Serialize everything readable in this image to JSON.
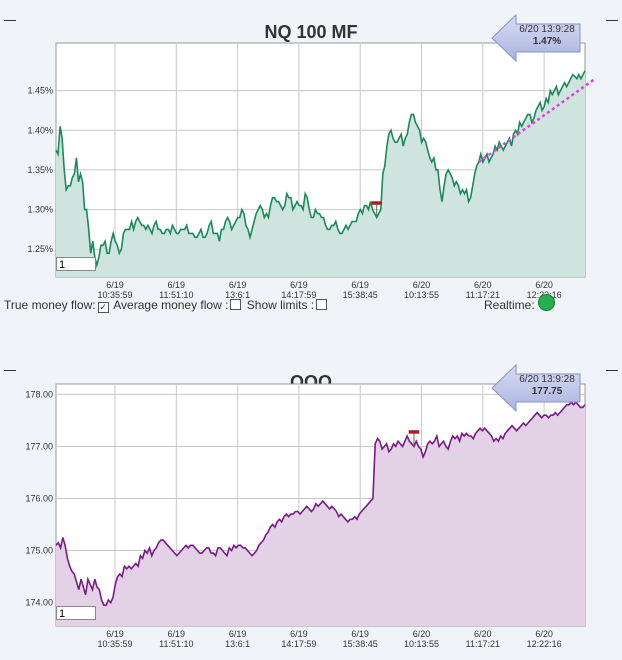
{
  "charts": [
    {
      "title": "NQ 100 MF",
      "callout_time": "6/20 13:9:28",
      "callout_value": "1.47%",
      "input_value": "1",
      "colors": {
        "line": "#1a8a5a",
        "fill": "#cfe4de",
        "trend": "#e040e0"
      }
    },
    {
      "title": "QQQ",
      "callout_time": "6/20 13:9:28",
      "callout_value": "177.75",
      "input_value": "1",
      "colors": {
        "line": "#7a1a8a",
        "fill": "#e3d2e6"
      }
    }
  ],
  "options": {
    "true_money_flow": "True money flow:",
    "average_money_flow": "Average money flow :",
    "show_limits": "Show limits :",
    "realtime": "Realtime:",
    "true_money_flow_checked": true,
    "realtime_color": "#22b14c"
  },
  "chart_data": [
    {
      "type": "area",
      "title": "NQ 100 MF",
      "ylim": [
        1.215,
        1.51
      ],
      "yticks": [
        "1.25%",
        "1.30%",
        "1.35%",
        "1.40%",
        "1.45%"
      ],
      "ytick_values": [
        1.25,
        1.3,
        1.35,
        1.4,
        1.45
      ],
      "xticks": [
        {
          "date": "6/19",
          "time": "10:35:59"
        },
        {
          "date": "6/19",
          "time": "11:51:10"
        },
        {
          "date": "6/19",
          "time": "13:6:1"
        },
        {
          "date": "6/19",
          "time": "14:17:59"
        },
        {
          "date": "6/19",
          "time": "15:38:45"
        },
        {
          "date": "6/20",
          "time": "10:13:55"
        },
        {
          "date": "6/20",
          "time": "11:17:21"
        },
        {
          "date": "6/20",
          "time": "12:22:16"
        }
      ],
      "marker_index": 157,
      "trend_line": {
        "start_index": 207,
        "end_index": 264,
        "start_value": 1.36,
        "end_value": 1.465
      },
      "values": [
        1.375,
        1.37,
        1.405,
        1.39,
        1.35,
        1.325,
        1.33,
        1.33,
        1.34,
        1.345,
        1.365,
        1.335,
        1.345,
        1.335,
        1.3,
        1.3,
        1.275,
        1.245,
        1.26,
        1.24,
        1.23,
        1.24,
        1.255,
        1.255,
        1.26,
        1.245,
        1.245,
        1.26,
        1.27,
        1.26,
        1.255,
        1.245,
        1.25,
        1.27,
        1.275,
        1.275,
        1.275,
        1.285,
        1.275,
        1.285,
        1.29,
        1.285,
        1.28,
        1.28,
        1.275,
        1.28,
        1.275,
        1.27,
        1.28,
        1.285,
        1.275,
        1.275,
        1.27,
        1.27,
        1.275,
        1.275,
        1.27,
        1.28,
        1.275,
        1.27,
        1.27,
        1.275,
        1.275,
        1.275,
        1.28,
        1.27,
        1.27,
        1.27,
        1.265,
        1.265,
        1.27,
        1.275,
        1.265,
        1.265,
        1.27,
        1.28,
        1.285,
        1.27,
        1.27,
        1.27,
        1.26,
        1.275,
        1.275,
        1.285,
        1.29,
        1.285,
        1.275,
        1.28,
        1.285,
        1.29,
        1.29,
        1.3,
        1.295,
        1.28,
        1.275,
        1.265,
        1.275,
        1.285,
        1.295,
        1.3,
        1.305,
        1.3,
        1.29,
        1.295,
        1.29,
        1.305,
        1.315,
        1.315,
        1.31,
        1.31,
        1.305,
        1.3,
        1.305,
        1.32,
        1.315,
        1.315,
        1.3,
        1.305,
        1.31,
        1.305,
        1.305,
        1.3,
        1.32,
        1.315,
        1.3,
        1.29,
        1.29,
        1.3,
        1.295,
        1.295,
        1.29,
        1.29,
        1.28,
        1.275,
        1.275,
        1.28,
        1.28,
        1.285,
        1.275,
        1.27,
        1.27,
        1.275,
        1.28,
        1.275,
        1.28,
        1.285,
        1.285,
        1.285,
        1.295,
        1.3,
        1.295,
        1.305,
        1.305,
        1.3,
        1.31,
        1.3,
        1.295,
        1.29,
        1.295,
        1.3,
        1.345,
        1.355,
        1.38,
        1.395,
        1.4,
        1.39,
        1.385,
        1.385,
        1.39,
        1.395,
        1.38,
        1.39,
        1.395,
        1.41,
        1.42,
        1.42,
        1.41,
        1.405,
        1.4,
        1.385,
        1.39,
        1.385,
        1.375,
        1.365,
        1.36,
        1.365,
        1.35,
        1.35,
        1.325,
        1.31,
        1.33,
        1.345,
        1.35,
        1.345,
        1.34,
        1.33,
        1.335,
        1.33,
        1.32,
        1.325,
        1.32,
        1.325,
        1.31,
        1.315,
        1.33,
        1.345,
        1.355,
        1.36,
        1.37,
        1.36,
        1.365,
        1.37,
        1.36,
        1.365,
        1.37,
        1.38,
        1.375,
        1.385,
        1.38,
        1.375,
        1.38,
        1.385,
        1.39,
        1.38,
        1.395,
        1.4,
        1.395,
        1.41,
        1.405,
        1.41,
        1.415,
        1.42,
        1.42,
        1.41,
        1.415,
        1.425,
        1.43,
        1.435,
        1.425,
        1.43,
        1.44,
        1.435,
        1.45,
        1.445,
        1.45,
        1.455,
        1.445,
        1.45,
        1.455,
        1.46,
        1.455,
        1.46,
        1.465,
        1.47,
        1.468,
        1.465,
        1.47,
        1.465,
        1.47,
        1.475
      ]
    },
    {
      "type": "area",
      "title": "QQQ",
      "ylim": [
        173.55,
        178.2
      ],
      "yticks": [
        "174.00",
        "175.00",
        "176.00",
        "177.00",
        "178.00"
      ],
      "ytick_values": [
        174,
        175,
        176,
        177,
        178
      ],
      "xticks": [
        {
          "date": "6/19",
          "time": "10:35:59"
        },
        {
          "date": "6/19",
          "time": "11:51:10"
        },
        {
          "date": "6/19",
          "time": "13:6:1"
        },
        {
          "date": "6/19",
          "time": "14:17:59"
        },
        {
          "date": "6/19",
          "time": "15:38:45"
        },
        {
          "date": "6/20",
          "time": "10:13:55"
        },
        {
          "date": "6/20",
          "time": "11:17:21"
        },
        {
          "date": "6/20",
          "time": "12:22:16"
        }
      ],
      "marker_index": 157,
      "values": [
        175.1,
        175.15,
        175.05,
        175.25,
        175.1,
        174.85,
        174.7,
        174.6,
        174.55,
        174.4,
        174.25,
        174.45,
        174.3,
        174.15,
        174.45,
        174.35,
        174.25,
        174.45,
        174.3,
        174.25,
        174.05,
        173.95,
        173.95,
        174.05,
        174.0,
        174.1,
        174.35,
        174.5,
        174.55,
        174.5,
        174.7,
        174.65,
        174.7,
        174.65,
        174.7,
        174.75,
        174.7,
        174.9,
        174.85,
        175.0,
        174.95,
        175.05,
        174.9,
        175.0,
        175.05,
        175.15,
        175.2,
        175.2,
        175.15,
        175.1,
        175.05,
        175.0,
        174.95,
        174.9,
        174.95,
        175.0,
        175.05,
        175.1,
        175.05,
        175.1,
        175.1,
        175.05,
        175.0,
        174.95,
        174.95,
        175.0,
        175.05,
        175.05,
        174.95,
        174.95,
        174.9,
        175.05,
        175.05,
        175.0,
        174.95,
        174.9,
        175.05,
        175.0,
        175.1,
        175.05,
        175.1,
        175.1,
        175.05,
        175.05,
        175.0,
        174.95,
        174.9,
        174.95,
        175.0,
        175.1,
        175.15,
        175.2,
        175.3,
        175.35,
        175.45,
        175.5,
        175.45,
        175.55,
        175.6,
        175.55,
        175.65,
        175.7,
        175.65,
        175.7,
        175.7,
        175.75,
        175.75,
        175.7,
        175.75,
        175.8,
        175.85,
        175.8,
        175.75,
        175.8,
        175.9,
        175.85,
        175.9,
        175.95,
        175.9,
        175.85,
        175.8,
        175.85,
        175.8,
        175.75,
        175.65,
        175.7,
        175.65,
        175.6,
        175.55,
        175.6,
        175.6,
        175.65,
        175.6,
        175.7,
        175.75,
        175.8,
        175.85,
        175.9,
        175.95,
        176.0,
        177.05,
        177.15,
        177.1,
        176.95,
        177.0,
        177.05,
        176.9,
        176.95,
        177.05,
        177.0,
        177.1,
        177.05,
        177.0,
        177.1,
        177.2,
        177.1,
        177.05,
        177.0,
        177.1,
        177.0,
        176.95,
        176.8,
        176.9,
        177.05,
        177.1,
        177.05,
        177.1,
        177.2,
        177.0,
        177.05,
        177.1,
        177.0,
        176.95,
        177.1,
        177.2,
        177.15,
        177.2,
        177.1,
        177.25,
        177.2,
        177.25,
        177.2,
        177.2,
        177.15,
        177.25,
        177.3,
        177.35,
        177.3,
        177.35,
        177.3,
        177.25,
        177.2,
        177.1,
        177.15,
        177.1,
        177.2,
        177.15,
        177.25,
        177.3,
        177.35,
        177.4,
        177.35,
        177.3,
        177.35,
        177.4,
        177.45,
        177.4,
        177.45,
        177.5,
        177.55,
        177.6,
        177.65,
        177.6,
        177.55,
        177.6,
        177.6,
        177.55,
        177.6,
        177.6,
        177.65,
        177.6,
        177.65,
        177.7,
        177.75,
        177.8,
        177.8,
        177.85,
        177.8,
        177.85,
        177.8,
        177.75,
        177.75,
        177.8
      ]
    }
  ]
}
